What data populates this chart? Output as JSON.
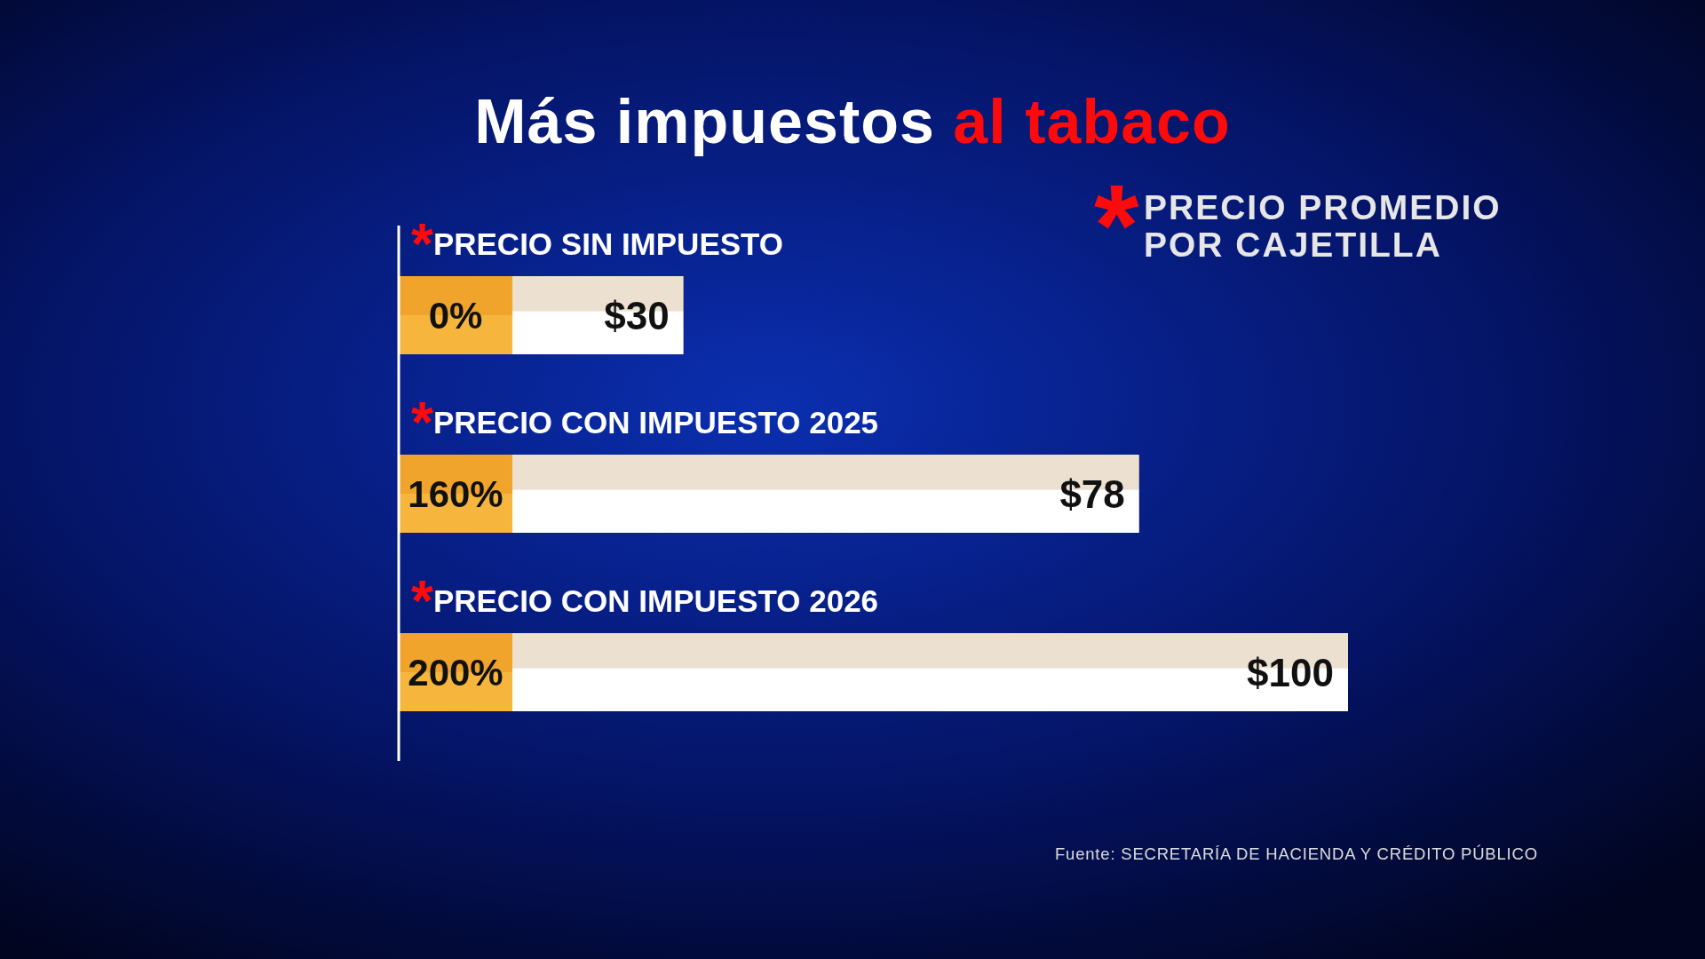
{
  "chart_data": {
    "type": "bar",
    "orientation": "horizontal",
    "title": "Más impuestos al tabaco",
    "categories": [
      "*PRECIO SIN IMPUESTO",
      "*PRECIO CON IMPUESTO 2025",
      "*PRECIO CON IMPUESTO 2026"
    ],
    "values": [
      30,
      78,
      100
    ],
    "value_labels": [
      "$30",
      "$78",
      "$100"
    ],
    "color": "#ffffff",
    "xlim": [
      0,
      100
    ],
    "tick_labels": "y",
    "annotations": [
      "*PRECIO PROMEDIO POR CAJETILLA",
      "0%",
      "160%",
      "200%",
      "Fuente: SECRETARÍA DE HACIENDA Y CRÉDITO PÚBLICO"
    ]
  }
}
